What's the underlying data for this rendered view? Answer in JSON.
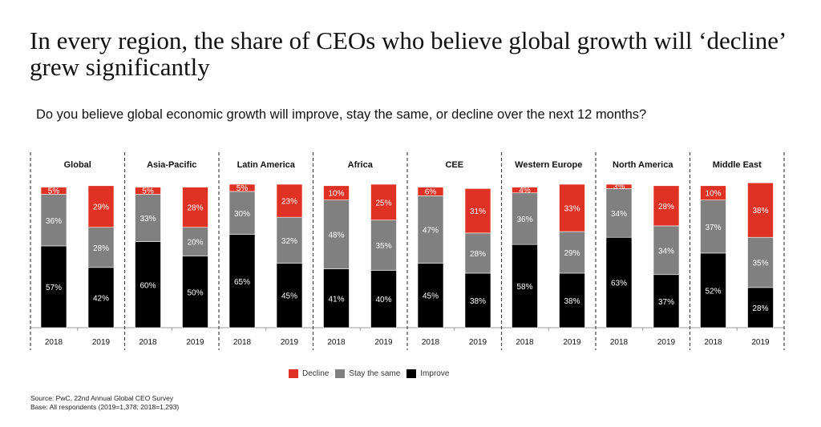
{
  "title": "In every region, the share of CEOs who believe global growth will ‘decline’ grew significantly",
  "subtitle": "Do you believe global economic growth will improve, stay the same, or decline over the next 12 months?",
  "colors": {
    "Decline": "#e03224",
    "Stay the same": "#808080",
    "Improve": "#000000"
  },
  "legend": [
    {
      "label": "Decline",
      "color": "#e03224"
    },
    {
      "label": "Stay the same",
      "color": "#808080"
    },
    {
      "label": "Improve",
      "color": "#000000"
    }
  ],
  "source": {
    "line1": "Source: PwC, 22nd Annual Global CEO Survey",
    "line2": "Base: All respondents (2019=1,378; 2018=1,293)"
  },
  "chart_data": {
    "type": "bar",
    "stacked": true,
    "title": "Do you believe global economic growth will improve, stay the same, or decline over the next 12 months?",
    "xlabel": "",
    "ylabel": "",
    "ylim": [
      0,
      100
    ],
    "grid": false,
    "legend_position": "bottom-center",
    "groups": [
      "Global",
      "Asia-Pacific",
      "Latin America",
      "Africa",
      "CEE",
      "Western Europe",
      "North America",
      "Middle East"
    ],
    "categories": [
      "2018",
      "2019"
    ],
    "series": [
      {
        "name": "Improve",
        "values": {
          "Global": [
            57,
            42
          ],
          "Asia-Pacific": [
            60,
            50
          ],
          "Latin America": [
            65,
            45
          ],
          "Africa": [
            41,
            40
          ],
          "CEE": [
            45,
            38
          ],
          "Western Europe": [
            58,
            38
          ],
          "North America": [
            63,
            37
          ],
          "Middle East": [
            52,
            28
          ]
        }
      },
      {
        "name": "Stay the same",
        "values": {
          "Global": [
            36,
            28
          ],
          "Asia-Pacific": [
            33,
            20
          ],
          "Latin America": [
            30,
            32
          ],
          "Africa": [
            48,
            35
          ],
          "CEE": [
            47,
            28
          ],
          "Western Europe": [
            36,
            29
          ],
          "North America": [
            34,
            34
          ],
          "Middle East": [
            37,
            35
          ]
        }
      },
      {
        "name": "Decline",
        "values": {
          "Global": [
            5,
            29
          ],
          "Asia-Pacific": [
            5,
            28
          ],
          "Latin America": [
            5,
            23
          ],
          "Africa": [
            10,
            25
          ],
          "CEE": [
            6,
            31
          ],
          "Western Europe": [
            4,
            33
          ],
          "North America": [
            3,
            28
          ],
          "Middle East": [
            10,
            38
          ]
        }
      }
    ]
  }
}
